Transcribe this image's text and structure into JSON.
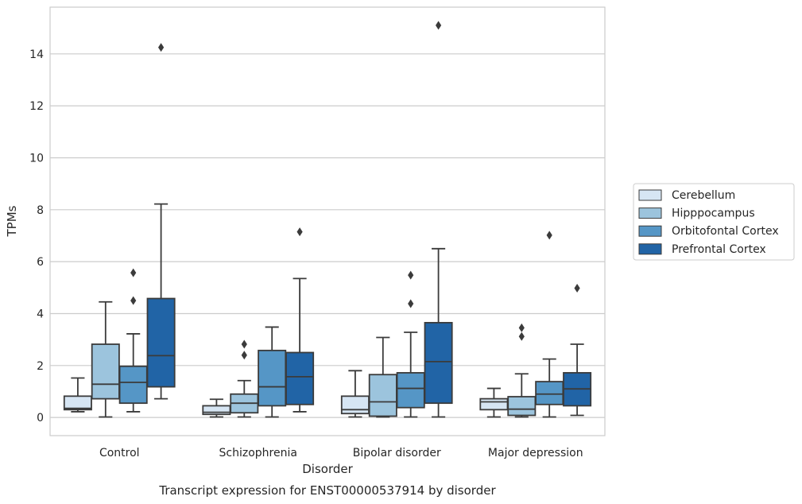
{
  "chart_data": {
    "type": "box",
    "xlabel": "Disorder",
    "ylabel": "TPMs",
    "caption": "Transcript expression for ENST00000537914 by disorder",
    "ylim": [
      -0.7,
      15.8
    ],
    "yticks": [
      "0",
      "2",
      "4",
      "6",
      "8",
      "10",
      "12",
      "14"
    ],
    "grid": true,
    "legend_position": "right",
    "categories": [
      "Control",
      "Schizophrenia",
      "Bipolar disorder",
      "Major depression"
    ],
    "series": [
      {
        "name": "Cerebellum",
        "color": "#d6e5f3",
        "boxes": [
          {
            "whisker_low": 0.22,
            "q1": 0.3,
            "median": 0.35,
            "q3": 0.82,
            "whisker_high": 1.52,
            "outliers": []
          },
          {
            "whisker_low": 0.02,
            "q1": 0.12,
            "median": 0.2,
            "q3": 0.45,
            "whisker_high": 0.7,
            "outliers": []
          },
          {
            "whisker_low": 0.02,
            "q1": 0.15,
            "median": 0.3,
            "q3": 0.82,
            "whisker_high": 1.8,
            "outliers": []
          },
          {
            "whisker_low": 0.02,
            "q1": 0.3,
            "median": 0.6,
            "q3": 0.72,
            "whisker_high": 1.12,
            "outliers": []
          }
        ]
      },
      {
        "name": "Hipppocampus",
        "color": "#9cc4dd",
        "boxes": [
          {
            "whisker_low": 0.02,
            "q1": 0.72,
            "median": 1.28,
            "q3": 2.82,
            "whisker_high": 4.45,
            "outliers": []
          },
          {
            "whisker_low": 0.02,
            "q1": 0.18,
            "median": 0.55,
            "q3": 0.9,
            "whisker_high": 1.42,
            "outliers": [
              2.4,
              2.82
            ]
          },
          {
            "whisker_low": 0.02,
            "q1": 0.05,
            "median": 0.6,
            "q3": 1.65,
            "whisker_high": 3.08,
            "outliers": []
          },
          {
            "whisker_low": 0.02,
            "q1": 0.08,
            "median": 0.32,
            "q3": 0.8,
            "whisker_high": 1.68,
            "outliers": [
              3.12,
              3.45
            ]
          }
        ]
      },
      {
        "name": "Orbitofontal Cortex",
        "color": "#5596c6",
        "boxes": [
          {
            "whisker_low": 0.22,
            "q1": 0.55,
            "median": 1.35,
            "q3": 1.97,
            "whisker_high": 3.22,
            "outliers": [
              4.5,
              5.57
            ]
          },
          {
            "whisker_low": 0.02,
            "q1": 0.45,
            "median": 1.18,
            "q3": 2.58,
            "whisker_high": 3.48,
            "outliers": []
          },
          {
            "whisker_low": 0.02,
            "q1": 0.38,
            "median": 1.12,
            "q3": 1.72,
            "whisker_high": 3.28,
            "outliers": [
              4.38,
              5.48
            ]
          },
          {
            "whisker_low": 0.02,
            "q1": 0.5,
            "median": 0.9,
            "q3": 1.38,
            "whisker_high": 2.25,
            "outliers": [
              7.02
            ]
          }
        ]
      },
      {
        "name": "Prefrontal Cortex",
        "color": "#2164a6",
        "boxes": [
          {
            "whisker_low": 0.72,
            "q1": 1.18,
            "median": 2.38,
            "q3": 4.58,
            "whisker_high": 8.22,
            "outliers": [
              14.25
            ]
          },
          {
            "whisker_low": 0.22,
            "q1": 0.5,
            "median": 1.57,
            "q3": 2.5,
            "whisker_high": 5.35,
            "outliers": [
              7.15
            ]
          },
          {
            "whisker_low": 0.02,
            "q1": 0.55,
            "median": 2.15,
            "q3": 3.65,
            "whisker_high": 6.5,
            "outliers": [
              15.1
            ]
          },
          {
            "whisker_low": 0.08,
            "q1": 0.45,
            "median": 1.1,
            "q3": 1.72,
            "whisker_high": 2.82,
            "outliers": [
              4.98
            ]
          }
        ]
      }
    ]
  }
}
